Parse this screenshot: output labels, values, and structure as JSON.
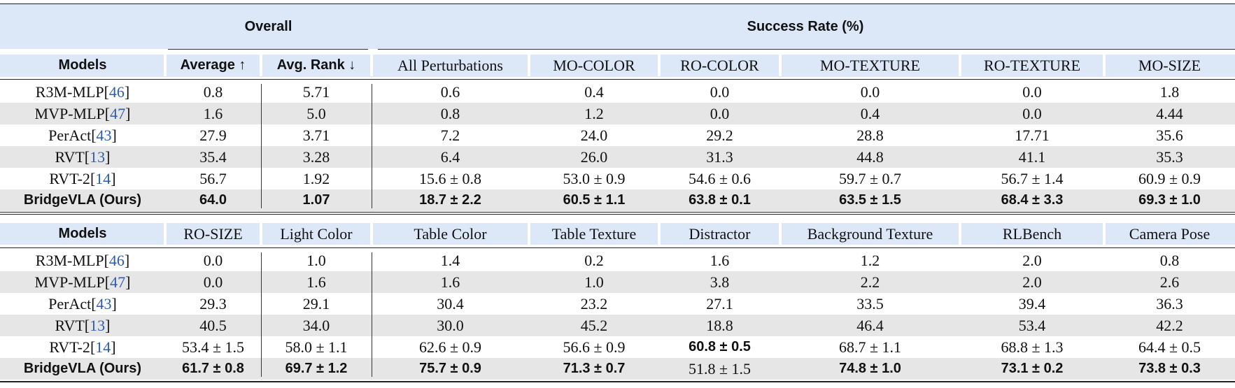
{
  "header": {
    "overall": "Overall",
    "success_rate": "Success Rate (%)"
  },
  "tables": [
    {
      "columns": [
        "Models",
        "Average ↑",
        "Avg. Rank ↓",
        "All Perturbations",
        "MO-COLOR",
        "RO-COLOR",
        "MO-TEXTURE",
        "RO-TEXTURE",
        "MO-SIZE"
      ],
      "rows": [
        {
          "model": "R3M-MLP",
          "cite": "[46]",
          "cells": [
            "0.8",
            "5.71",
            "0.6",
            "0.4",
            "0.0",
            "0.0",
            "0.0",
            "1.8"
          ]
        },
        {
          "model": "MVP-MLP",
          "cite": "[47]",
          "cells": [
            "1.6",
            "5.0",
            "0.8",
            "1.2",
            "0.0",
            "0.4",
            "0.0",
            "4.44"
          ]
        },
        {
          "model": "PerAct",
          "cite": "[43]",
          "cells": [
            "27.9",
            "3.71",
            "7.2",
            "24.0",
            "29.2",
            "28.8",
            "17.71",
            "35.6"
          ]
        },
        {
          "model": "RVT",
          "cite": "[13]",
          "cells": [
            "35.4",
            "3.28",
            "6.4",
            "26.0",
            "31.3",
            "44.8",
            "41.1",
            "35.3"
          ]
        },
        {
          "model": "RVT-2",
          "cite": "[14]",
          "cells": [
            "56.7",
            "1.92",
            "15.6 ± 0.8",
            "53.0 ± 0.9",
            "54.6 ± 0.6",
            "59.7 ± 0.7",
            "56.7 ± 1.4",
            "60.9 ± 0.9"
          ]
        },
        {
          "model": "BridgeVLA (Ours)",
          "cells": [
            "64.0",
            "1.07",
            "18.7 ± 2.2",
            "60.5 ± 1.1",
            "63.8 ± 0.1",
            "63.5 ± 1.5",
            "68.4 ± 3.3",
            "69.3 ± 1.0"
          ]
        }
      ]
    },
    {
      "columns": [
        "Models",
        "RO-SIZE",
        "Light Color",
        "Table Color",
        "Table Texture",
        "Distractor",
        "Background Texture",
        "RLBench",
        "Camera Pose"
      ],
      "rows": [
        {
          "model": "R3M-MLP",
          "cite": "[46]",
          "cells": [
            "0.0",
            "1.0",
            "1.4",
            "0.2",
            "1.6",
            "1.2",
            "2.0",
            "0.8"
          ]
        },
        {
          "model": "MVP-MLP",
          "cite": "[47]",
          "cells": [
            "0.0",
            "1.6",
            "1.6",
            "1.0",
            "3.8",
            "2.2",
            "2.0",
            "2.6"
          ]
        },
        {
          "model": "PerAct",
          "cite": "[43]",
          "cells": [
            "29.3",
            "29.1",
            "30.4",
            "23.2",
            "27.1",
            "33.5",
            "39.4",
            "36.3"
          ]
        },
        {
          "model": "RVT",
          "cite": "[13]",
          "cells": [
            "40.5",
            "34.0",
            "30.0",
            "45.2",
            "18.8",
            "46.4",
            "53.4",
            "42.2"
          ]
        },
        {
          "model": "RVT-2",
          "cite": "[14]",
          "cells": [
            "53.4 ± 1.5",
            "58.0 ± 1.1",
            "62.6 ± 0.9",
            "56.6 ± 0.9",
            "60.8 ± 0.5",
            "68.7 ± 1.1",
            "68.8 ± 1.3",
            "64.4 ± 0.5"
          ]
        },
        {
          "model": "BridgeVLA (Ours)",
          "cells": [
            "61.7 ± 0.8",
            "69.7 ± 1.2",
            "75.7 ± 0.9",
            "71.3 ± 0.7",
            "51.8 ± 1.5",
            "74.8 ± 1.0",
            "73.1 ± 0.2",
            "73.8 ± 0.3"
          ]
        }
      ]
    }
  ]
}
